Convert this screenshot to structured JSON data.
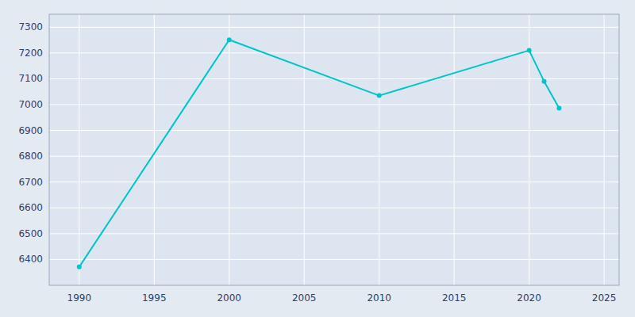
{
  "chart_data": {
    "type": "line",
    "x": [
      1990,
      2000,
      2010,
      2020,
      2021,
      2022
    ],
    "values": [
      6371,
      7251,
      7035,
      7210,
      7090,
      6986
    ],
    "color": "#00C5C8",
    "marker": "circle",
    "xlim": [
      1988,
      2026
    ],
    "ylim": [
      6300,
      7350
    ],
    "xticks": [
      1990,
      1995,
      2000,
      2005,
      2010,
      2015,
      2020,
      2025
    ],
    "yticks": [
      6400,
      6500,
      6600,
      6700,
      6800,
      6900,
      7000,
      7100,
      7200,
      7300
    ],
    "grid": true
  }
}
